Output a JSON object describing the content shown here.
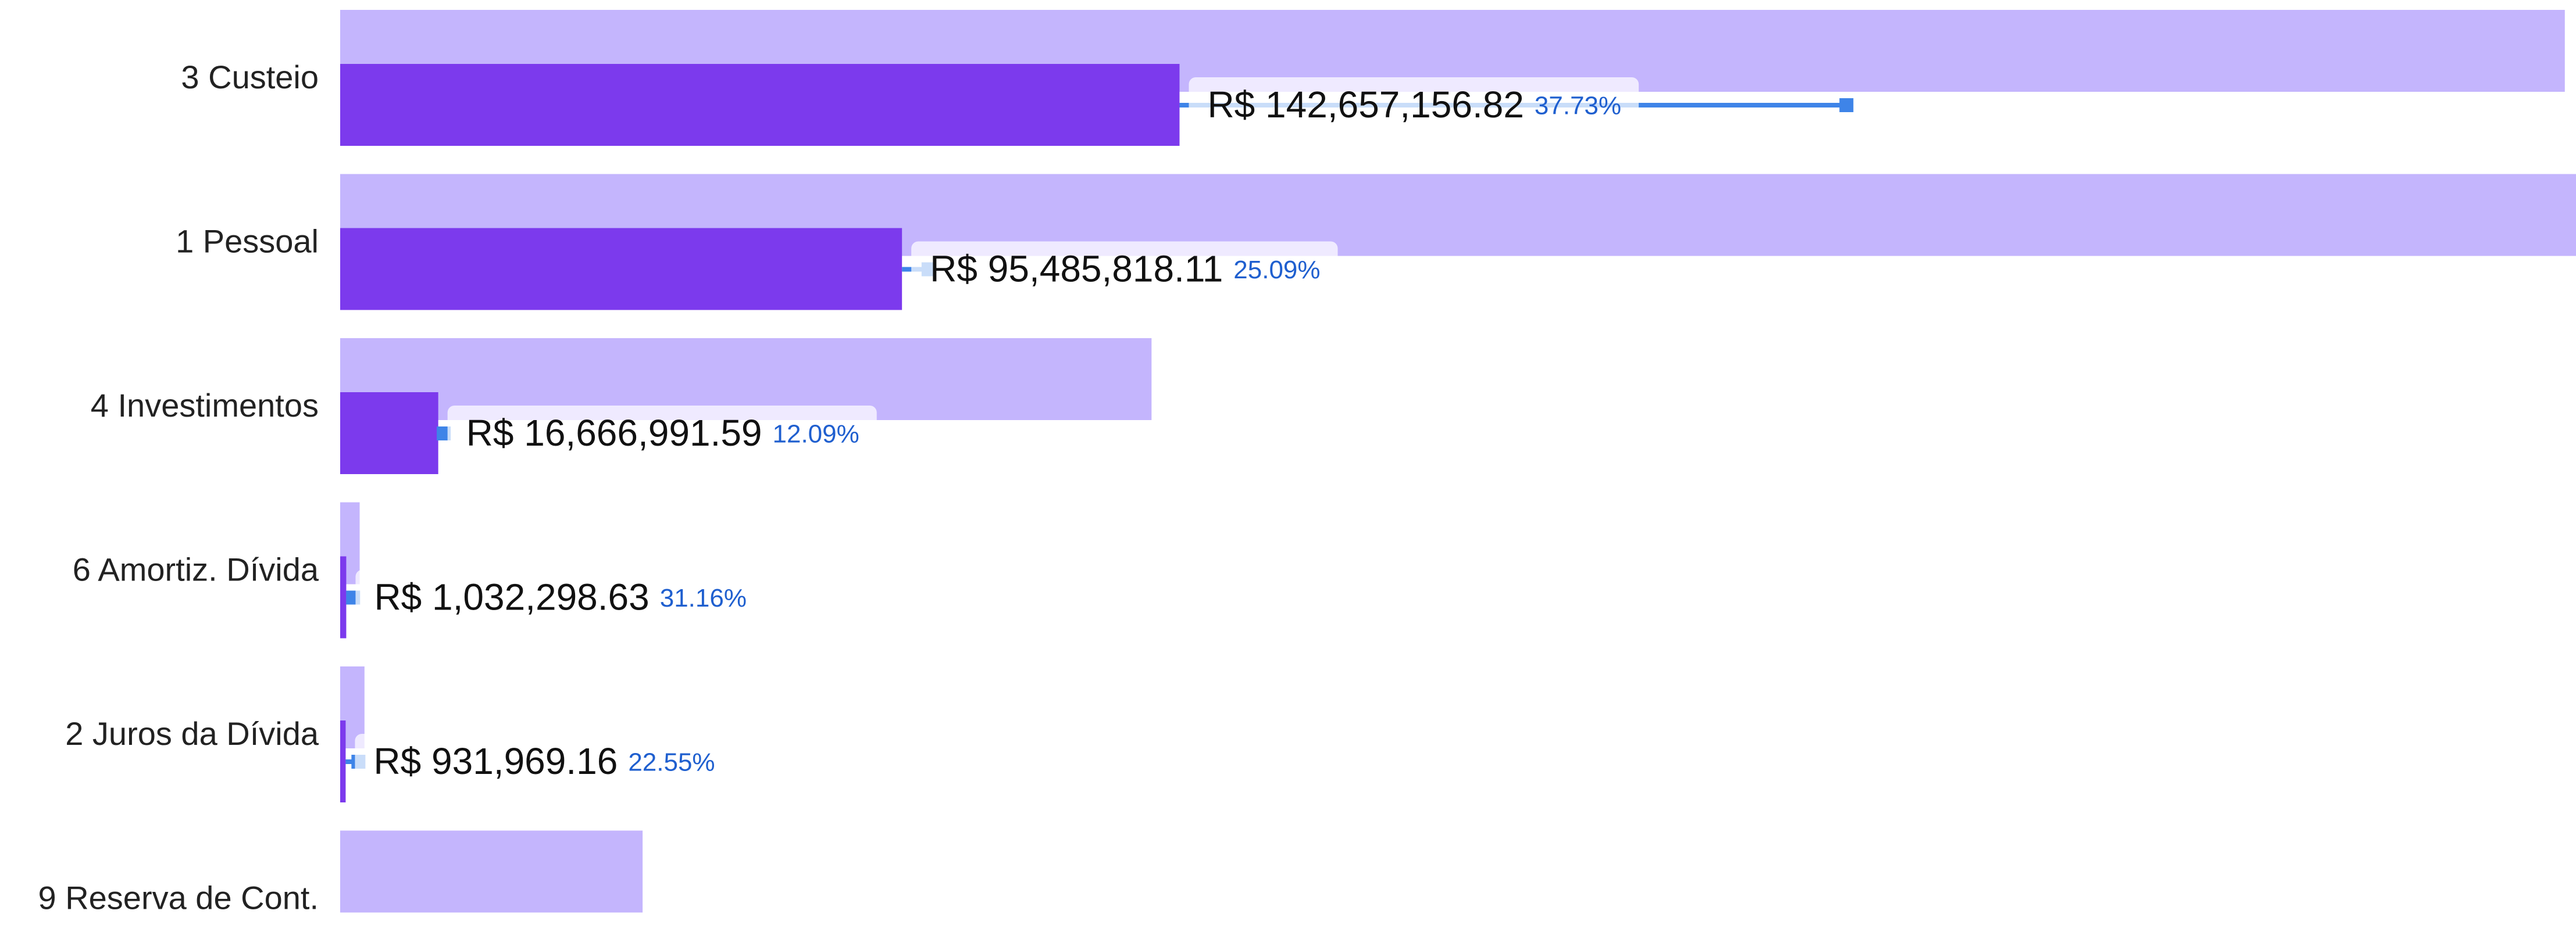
{
  "chart_data": {
    "type": "bar",
    "orientation": "horizontal",
    "categories": [
      "3 Custeio",
      "1 Pessoal",
      "4 Investimentos",
      "6 Amortiz. Dívida",
      "2 Juros da Dívida",
      "9 Reserva de Cont."
    ],
    "xlim": [
      0,
      380000000
    ],
    "series": [
      {
        "color": "#c4b5fd",
        "values": [
          378100000,
          380600000,
          137900000,
          3313000,
          4133000,
          51400000
        ]
      },
      {
        "color": "#7c3aed",
        "values": [
          142657156.82,
          95485818.11,
          16666991.59,
          1032298.63,
          931969.16,
          null
        ],
        "value_labels": [
          "R$ 142,657,156.82",
          "R$ 95,485,818.11",
          "R$ 16,666,991.59",
          "R$ 1,032,298.63",
          "R$ 931,969.16",
          null
        ]
      },
      {
        "type": "marker",
        "color": "#3e84e8",
        "values": [
          256000000,
          100000000,
          17600000,
          2200000,
          3100000,
          null
        ]
      }
    ],
    "percent_labels": [
      "37.73%",
      "25.09%",
      "12.09%",
      "31.16%",
      "22.55%",
      null
    ],
    "percent_color": "#1f5fcf"
  }
}
